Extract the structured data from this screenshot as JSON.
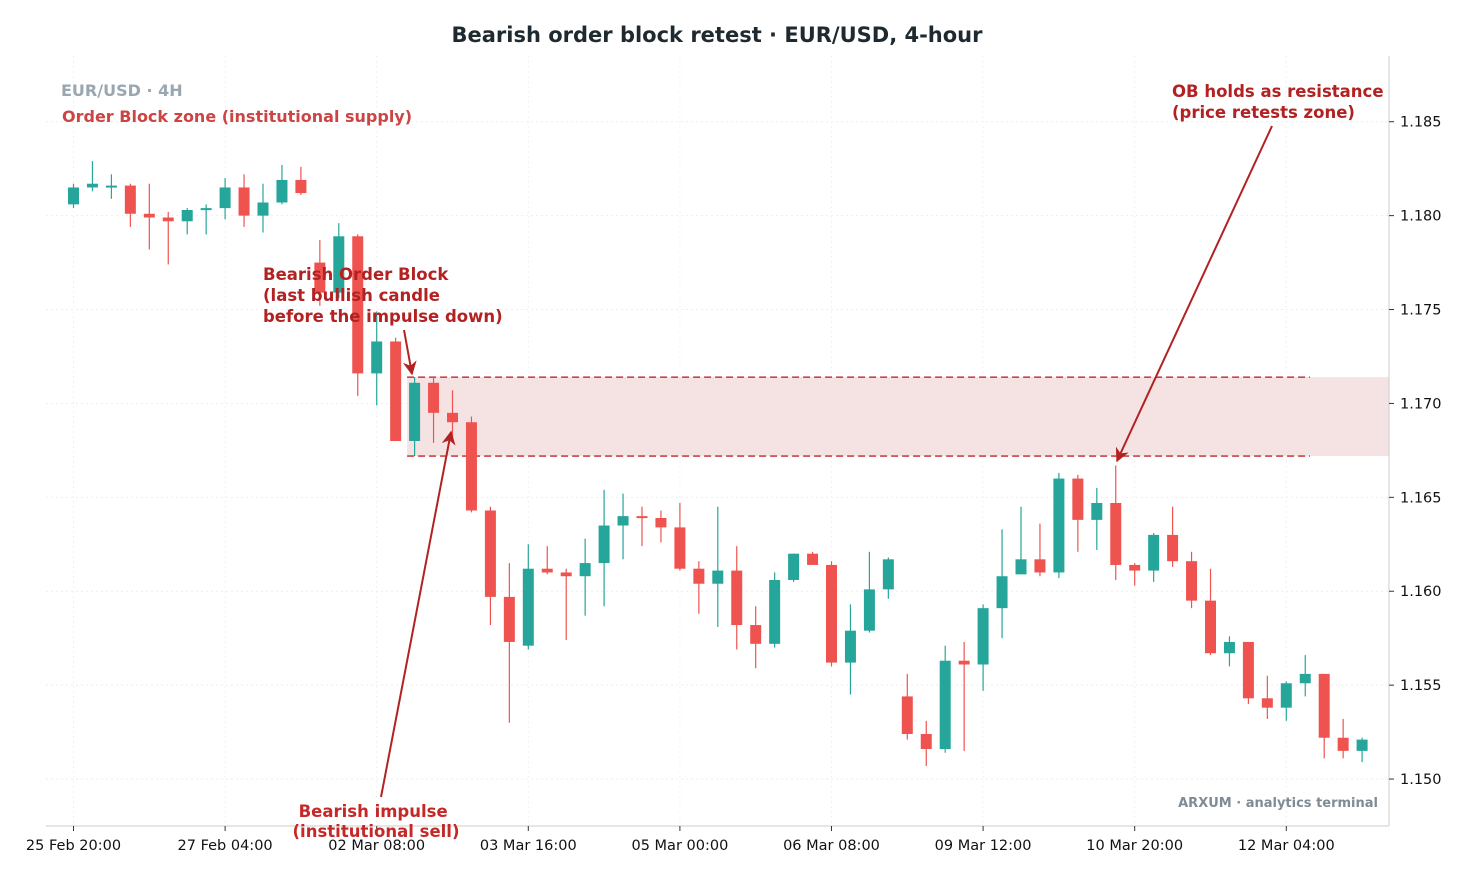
{
  "chart_data": {
    "type": "candlestick",
    "title": "Bearish order block retest  ·  EUR/USD, 4-hour",
    "symbol_label": "EUR/USD · 4H",
    "zone_label": "Order Block zone (institutional supply)",
    "watermark": "ARXUM · analytics terminal",
    "ylim": [
      1.1475,
      1.1885
    ],
    "y_ticks": [
      1.15,
      1.155,
      1.16,
      1.165,
      1.17,
      1.175,
      1.18,
      1.185
    ],
    "y_tick_labels": [
      "1.150",
      "1.155",
      "1.160",
      "1.165",
      "1.170",
      "1.175",
      "1.180",
      "1.185"
    ],
    "x_tick_labels": [
      "25 Feb 20:00",
      "27 Feb 04:00",
      "02 Mar 08:00",
      "03 Mar 16:00",
      "05 Mar 00:00",
      "06 Mar 08:00",
      "09 Mar 12:00",
      "10 Mar 20:00",
      "12 Mar 04:00"
    ],
    "x_tick_index": [
      0,
      8,
      16,
      24,
      32,
      40,
      48,
      56,
      64
    ],
    "grid": true,
    "colors": {
      "up": "#26a69a",
      "down": "#ef5350",
      "zone": "#f5e3e3",
      "zone_line": "#cc4444",
      "annotation": "#b22222"
    },
    "order_block_zone": {
      "low": 1.1672,
      "high": 1.1714,
      "start_index": 18
    },
    "candles": [
      {
        "o": 1.1806,
        "h": 1.1817,
        "l": 1.1804,
        "c": 1.1815
      },
      {
        "o": 1.1815,
        "h": 1.1829,
        "l": 1.1813,
        "c": 1.1817
      },
      {
        "o": 1.1816,
        "h": 1.1822,
        "l": 1.1809,
        "c": 1.1816
      },
      {
        "o": 1.1816,
        "h": 1.1817,
        "l": 1.1794,
        "c": 1.1801
      },
      {
        "o": 1.1801,
        "h": 1.1817,
        "l": 1.1782,
        "c": 1.1799
      },
      {
        "o": 1.1799,
        "h": 1.1802,
        "l": 1.1774,
        "c": 1.1797
      },
      {
        "o": 1.1797,
        "h": 1.1804,
        "l": 1.179,
        "c": 1.1803
      },
      {
        "o": 1.1803,
        "h": 1.1806,
        "l": 1.179,
        "c": 1.1804
      },
      {
        "o": 1.1804,
        "h": 1.182,
        "l": 1.1798,
        "c": 1.1815
      },
      {
        "o": 1.1815,
        "h": 1.1822,
        "l": 1.1794,
        "c": 1.18
      },
      {
        "o": 1.18,
        "h": 1.1817,
        "l": 1.1791,
        "c": 1.1807
      },
      {
        "o": 1.1807,
        "h": 1.1827,
        "l": 1.1806,
        "c": 1.1819
      },
      {
        "o": 1.1819,
        "h": 1.1826,
        "l": 1.1811,
        "c": 1.1812
      },
      {
        "o": 1.1775,
        "h": 1.1787,
        "l": 1.1752,
        "c": 1.1759
      },
      {
        "o": 1.1759,
        "h": 1.1796,
        "l": 1.1756,
        "c": 1.1789
      },
      {
        "o": 1.1789,
        "h": 1.179,
        "l": 1.1704,
        "c": 1.1716
      },
      {
        "o": 1.1716,
        "h": 1.1749,
        "l": 1.1699,
        "c": 1.1733
      },
      {
        "o": 1.1733,
        "h": 1.1735,
        "l": 1.168,
        "c": 1.168
      },
      {
        "o": 1.168,
        "h": 1.1714,
        "l": 1.1672,
        "c": 1.1711
      },
      {
        "o": 1.1711,
        "h": 1.1714,
        "l": 1.1679,
        "c": 1.1695
      },
      {
        "o": 1.1695,
        "h": 1.1707,
        "l": 1.1681,
        "c": 1.169
      },
      {
        "o": 1.169,
        "h": 1.1693,
        "l": 1.1642,
        "c": 1.1643
      },
      {
        "o": 1.1643,
        "h": 1.1645,
        "l": 1.1582,
        "c": 1.1597
      },
      {
        "o": 1.1597,
        "h": 1.1615,
        "l": 1.153,
        "c": 1.1573
      },
      {
        "o": 1.1571,
        "h": 1.1625,
        "l": 1.1569,
        "c": 1.1612
      },
      {
        "o": 1.1612,
        "h": 1.1624,
        "l": 1.1609,
        "c": 1.161
      },
      {
        "o": 1.161,
        "h": 1.1612,
        "l": 1.1574,
        "c": 1.1608
      },
      {
        "o": 1.1608,
        "h": 1.1628,
        "l": 1.1587,
        "c": 1.1615
      },
      {
        "o": 1.1615,
        "h": 1.1654,
        "l": 1.1592,
        "c": 1.1635
      },
      {
        "o": 1.1635,
        "h": 1.1652,
        "l": 1.1617,
        "c": 1.164
      },
      {
        "o": 1.164,
        "h": 1.1645,
        "l": 1.1624,
        "c": 1.1639
      },
      {
        "o": 1.1639,
        "h": 1.1643,
        "l": 1.1626,
        "c": 1.1634
      },
      {
        "o": 1.1634,
        "h": 1.1647,
        "l": 1.1611,
        "c": 1.1612
      },
      {
        "o": 1.1612,
        "h": 1.1616,
        "l": 1.1588,
        "c": 1.1604
      },
      {
        "o": 1.1604,
        "h": 1.1645,
        "l": 1.1581,
        "c": 1.1611
      },
      {
        "o": 1.1611,
        "h": 1.1624,
        "l": 1.1569,
        "c": 1.1582
      },
      {
        "o": 1.1582,
        "h": 1.1592,
        "l": 1.1559,
        "c": 1.1572
      },
      {
        "o": 1.1572,
        "h": 1.161,
        "l": 1.157,
        "c": 1.1606
      },
      {
        "o": 1.1606,
        "h": 1.162,
        "l": 1.1605,
        "c": 1.162
      },
      {
        "o": 1.162,
        "h": 1.1621,
        "l": 1.1614,
        "c": 1.1614
      },
      {
        "o": 1.1614,
        "h": 1.1616,
        "l": 1.156,
        "c": 1.1562
      },
      {
        "o": 1.1562,
        "h": 1.1593,
        "l": 1.1545,
        "c": 1.1579
      },
      {
        "o": 1.1579,
        "h": 1.1621,
        "l": 1.1578,
        "c": 1.1601
      },
      {
        "o": 1.1601,
        "h": 1.1618,
        "l": 1.1596,
        "c": 1.1617
      },
      {
        "o": 1.1544,
        "h": 1.1556,
        "l": 1.1521,
        "c": 1.1524
      },
      {
        "o": 1.1524,
        "h": 1.1531,
        "l": 1.1507,
        "c": 1.1516
      },
      {
        "o": 1.1516,
        "h": 1.1571,
        "l": 1.1514,
        "c": 1.1563
      },
      {
        "o": 1.1563,
        "h": 1.1573,
        "l": 1.1515,
        "c": 1.1561
      },
      {
        "o": 1.1561,
        "h": 1.1593,
        "l": 1.1547,
        "c": 1.1591
      },
      {
        "o": 1.1591,
        "h": 1.1633,
        "l": 1.1575,
        "c": 1.1608
      },
      {
        "o": 1.1609,
        "h": 1.1645,
        "l": 1.1609,
        "c": 1.1617
      },
      {
        "o": 1.1617,
        "h": 1.1636,
        "l": 1.1608,
        "c": 1.161
      },
      {
        "o": 1.161,
        "h": 1.1663,
        "l": 1.1607,
        "c": 1.166
      },
      {
        "o": 1.166,
        "h": 1.1662,
        "l": 1.1621,
        "c": 1.1638
      },
      {
        "o": 1.1638,
        "h": 1.1655,
        "l": 1.1622,
        "c": 1.1647
      },
      {
        "o": 1.1647,
        "h": 1.1667,
        "l": 1.1606,
        "c": 1.1614
      },
      {
        "o": 1.1614,
        "h": 1.1615,
        "l": 1.1603,
        "c": 1.1611
      },
      {
        "o": 1.1611,
        "h": 1.1631,
        "l": 1.1605,
        "c": 1.163
      },
      {
        "o": 1.163,
        "h": 1.1645,
        "l": 1.1613,
        "c": 1.1616
      },
      {
        "o": 1.1616,
        "h": 1.1621,
        "l": 1.1591,
        "c": 1.1595
      },
      {
        "o": 1.1595,
        "h": 1.1612,
        "l": 1.1566,
        "c": 1.1567
      },
      {
        "o": 1.1567,
        "h": 1.1576,
        "l": 1.156,
        "c": 1.1573
      },
      {
        "o": 1.1573,
        "h": 1.1573,
        "l": 1.154,
        "c": 1.1543
      },
      {
        "o": 1.1543,
        "h": 1.1555,
        "l": 1.1532,
        "c": 1.1538
      },
      {
        "o": 1.1538,
        "h": 1.1552,
        "l": 1.1531,
        "c": 1.1551
      },
      {
        "o": 1.1551,
        "h": 1.1566,
        "l": 1.1544,
        "c": 1.1556
      },
      {
        "o": 1.1556,
        "h": 1.1556,
        "l": 1.1511,
        "c": 1.1522
      },
      {
        "o": 1.1522,
        "h": 1.1532,
        "l": 1.1511,
        "c": 1.1515
      },
      {
        "o": 1.1515,
        "h": 1.1522,
        "l": 1.1509,
        "c": 1.1521
      }
    ],
    "annotations": [
      {
        "lines": [
          "Bearish Order Block",
          "(last bullish candle",
          "before the impulse down)"
        ],
        "target_index": 18,
        "target_price": 1.1714
      },
      {
        "lines": [
          "Bearish impulse",
          "(institutional sell)"
        ],
        "target_index": 20,
        "target_price": 1.1686
      },
      {
        "lines": [
          "OB holds as resistance",
          "(price retests zone)"
        ],
        "target_index": 55,
        "target_price": 1.1672
      }
    ]
  }
}
